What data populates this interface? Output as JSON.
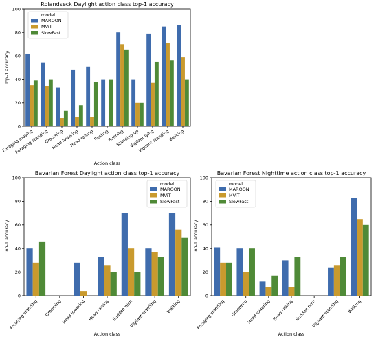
{
  "colors": {
    "MAROON": "#3f6cad",
    "MViT": "#c99a2e",
    "SlowFast": "#4f8a37"
  },
  "chart_data": [
    {
      "type": "bar",
      "title": "Rolandseck Daylight action class top-1 accuracy",
      "xlabel": "Action class",
      "ylabel": "Top-1 accuracy",
      "ylim": [
        0,
        100
      ],
      "yticks": [
        "0",
        "20",
        "40",
        "60",
        "80",
        "100"
      ],
      "legend_title": "model",
      "legend_position": "top-left",
      "categories": [
        "Foraging moving",
        "Foraging standing",
        "Grooming",
        "Head lowering",
        "Head raising",
        "Resting",
        "Running",
        "Standing up",
        "Vigilant lying",
        "Vigilant standing",
        "Walking"
      ],
      "series": [
        {
          "name": "MAROON",
          "values": [
            62,
            54,
            33,
            48,
            51,
            40,
            80,
            40,
            79,
            85,
            86
          ]
        },
        {
          "name": "MViT",
          "values": [
            35,
            34,
            7,
            8,
            8,
            0,
            70,
            20,
            37,
            71,
            59
          ]
        },
        {
          "name": "SlowFast",
          "values": [
            39,
            40,
            13,
            18,
            38,
            40,
            65,
            20,
            55,
            56,
            40
          ]
        }
      ]
    },
    {
      "type": "bar",
      "title": "Bavarian Forest Daylight action class top-1 accuracy",
      "xlabel": "Action class",
      "ylabel": "Top-1 accuracy",
      "ylim": [
        0,
        100
      ],
      "yticks": [
        "0",
        "20",
        "40",
        "60",
        "80",
        "100"
      ],
      "legend_title": "model",
      "legend_position": "top-right",
      "categories": [
        "Foraging standing",
        "Grooming",
        "Head lowering",
        "Head raising",
        "Sudden rush",
        "Vigilant standing",
        "Walking"
      ],
      "series": [
        {
          "name": "MAROON",
          "values": [
            40,
            0,
            28,
            33,
            70,
            40,
            70
          ]
        },
        {
          "name": "MViT",
          "values": [
            28,
            0,
            4,
            26,
            40,
            37,
            56
          ]
        },
        {
          "name": "SlowFast",
          "values": [
            46,
            0,
            0,
            20,
            20,
            33,
            49
          ]
        }
      ]
    },
    {
      "type": "bar",
      "title": "Bavarian Forest Nighttime action class top-1 accuracy",
      "xlabel": "Action class",
      "ylabel": "Top-1 accuracy",
      "ylim": [
        0,
        100
      ],
      "yticks": [
        "0",
        "20",
        "40",
        "60",
        "80",
        "100"
      ],
      "legend_title": "model",
      "legend_position": "top-left",
      "categories": [
        "Foraging standing",
        "Grooming",
        "Head lowering",
        "Head raising",
        "Sudden rush",
        "Vigilant standing",
        "Walking"
      ],
      "series": [
        {
          "name": "MAROON",
          "values": [
            41,
            40,
            12,
            30,
            0,
            24,
            83
          ]
        },
        {
          "name": "MViT",
          "values": [
            28,
            20,
            7,
            7,
            0,
            26,
            65
          ]
        },
        {
          "name": "SlowFast",
          "values": [
            28,
            40,
            17,
            33,
            0,
            33,
            60
          ]
        }
      ]
    }
  ]
}
